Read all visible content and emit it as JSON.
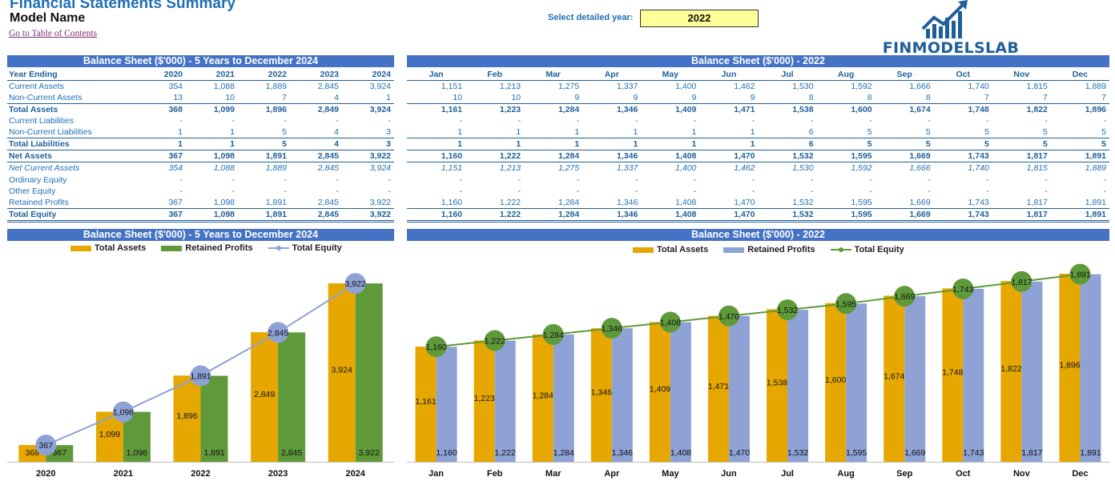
{
  "header": {
    "title": "Financial Statements Summary",
    "model_name": "Model Name",
    "toc_link": "Go to Table of Contents",
    "year_label": "Select detailed year:",
    "year_value": "2022",
    "logo_text": "FINMODELSLAB"
  },
  "colors": {
    "band": "#4472c4",
    "total_assets": "#e6a800",
    "retained_profits_annual": "#5f9a3a",
    "retained_profits_monthly": "#8ea2d6",
    "equity_line_annual": "#8ea2d6",
    "equity_line_monthly": "#5f9a3a",
    "text_blue": "#1f6fb5",
    "input_yellow": "#ffff99"
  },
  "annual_table": {
    "band_title": "Balance Sheet ($'000) - 5 Years to December 2024",
    "header_label": "Year Ending",
    "years": [
      "2020",
      "2021",
      "2022",
      "2023",
      "2024"
    ],
    "rows": [
      {
        "label": "Current Assets",
        "values": [
          "354",
          "1,088",
          "1,889",
          "2,845",
          "3,924"
        ],
        "style": "normal"
      },
      {
        "label": "Non-Current Assets",
        "values": [
          "13",
          "10",
          "7",
          "4",
          "1"
        ],
        "style": "normal"
      },
      {
        "label": "Total Assets",
        "values": [
          "368",
          "1,099",
          "1,896",
          "2,849",
          "3,924"
        ],
        "style": "total"
      },
      {
        "label": "Current Liabilities",
        "values": [
          "-",
          "-",
          "-",
          "-",
          "-"
        ],
        "style": "normal"
      },
      {
        "label": "Non-Current Liabilities",
        "values": [
          "1",
          "1",
          "5",
          "4",
          "3"
        ],
        "style": "normal"
      },
      {
        "label": "Total Liabilities",
        "values": [
          "1",
          "1",
          "5",
          "4",
          "3"
        ],
        "style": "total"
      },
      {
        "label": "Net Assets",
        "values": [
          "367",
          "1,098",
          "1,891",
          "2,845",
          "3,922"
        ],
        "style": "net"
      },
      {
        "label": "Net Current Assets",
        "values": [
          "354",
          "1,088",
          "1,889",
          "2,845",
          "3,924"
        ],
        "style": "italic"
      },
      {
        "label": "Ordinary Equity",
        "values": [
          "-",
          "-",
          "-",
          "-",
          "-"
        ],
        "style": "normal"
      },
      {
        "label": "Other Equity",
        "values": [
          "-",
          "-",
          "-",
          "-",
          "-"
        ],
        "style": "normal"
      },
      {
        "label": "Retained Profits",
        "values": [
          "367",
          "1,098",
          "1,891",
          "2,845",
          "3,922"
        ],
        "style": "normal"
      },
      {
        "label": "Total Equity",
        "values": [
          "367",
          "1,098",
          "1,891",
          "2,845",
          "3,922"
        ],
        "style": "grand"
      }
    ]
  },
  "monthly_table": {
    "band_title": "Balance Sheet ($'000) - 2022",
    "months": [
      "Jan",
      "Feb",
      "Mar",
      "Apr",
      "May",
      "Jun",
      "Jul",
      "Aug",
      "Sep",
      "Oct",
      "Nov",
      "Dec"
    ],
    "rows": [
      {
        "values": [
          "1,151",
          "1,213",
          "1,275",
          "1,337",
          "1,400",
          "1,462",
          "1,530",
          "1,592",
          "1,666",
          "1,740",
          "1,815",
          "1,889"
        ],
        "style": "normal"
      },
      {
        "values": [
          "10",
          "10",
          "9",
          "9",
          "9",
          "9",
          "8",
          "8",
          "8",
          "7",
          "7",
          "7"
        ],
        "style": "normal"
      },
      {
        "values": [
          "1,161",
          "1,223",
          "1,284",
          "1,346",
          "1,409",
          "1,471",
          "1,538",
          "1,600",
          "1,674",
          "1,748",
          "1,822",
          "1,896"
        ],
        "style": "total"
      },
      {
        "values": [
          "-",
          "-",
          "-",
          "-",
          "-",
          "-",
          "-",
          "-",
          "-",
          "-",
          "-",
          "-"
        ],
        "style": "normal"
      },
      {
        "values": [
          "1",
          "1",
          "1",
          "1",
          "1",
          "1",
          "6",
          "5",
          "5",
          "5",
          "5",
          "5"
        ],
        "style": "normal"
      },
      {
        "values": [
          "1",
          "1",
          "1",
          "1",
          "1",
          "1",
          "6",
          "5",
          "5",
          "5",
          "5",
          "5"
        ],
        "style": "total"
      },
      {
        "values": [
          "1,160",
          "1,222",
          "1,284",
          "1,346",
          "1,408",
          "1,470",
          "1,532",
          "1,595",
          "1,669",
          "1,743",
          "1,817",
          "1,891"
        ],
        "style": "net"
      },
      {
        "values": [
          "1,151",
          "1,213",
          "1,275",
          "1,337",
          "1,400",
          "1,462",
          "1,530",
          "1,592",
          "1,666",
          "1,740",
          "1,815",
          "1,889"
        ],
        "style": "italic"
      },
      {
        "values": [
          "-",
          "-",
          "-",
          "-",
          "-",
          "-",
          "-",
          "-",
          "-",
          "-",
          "-",
          "-"
        ],
        "style": "normal"
      },
      {
        "values": [
          "-",
          "-",
          "-",
          "-",
          "-",
          "-",
          "-",
          "-",
          "-",
          "-",
          "-",
          "-"
        ],
        "style": "normal"
      },
      {
        "values": [
          "1,160",
          "1,222",
          "1,284",
          "1,346",
          "1,408",
          "1,470",
          "1,532",
          "1,595",
          "1,669",
          "1,743",
          "1,817",
          "1,891"
        ],
        "style": "normal"
      },
      {
        "values": [
          "1,160",
          "1,222",
          "1,284",
          "1,346",
          "1,408",
          "1,470",
          "1,532",
          "1,595",
          "1,669",
          "1,743",
          "1,817",
          "1,891"
        ],
        "style": "grand"
      }
    ]
  },
  "legend": {
    "total_assets": "Total Assets",
    "retained_profits": "Retained Profits",
    "total_equity": "Total Equity"
  },
  "chart_data": [
    {
      "type": "bar",
      "title": "Balance Sheet ($'000) - 5 Years to December 2024",
      "categories": [
        "2020",
        "2021",
        "2022",
        "2023",
        "2024"
      ],
      "series": [
        {
          "name": "Total Assets",
          "kind": "bar",
          "values": [
            368,
            1099,
            1896,
            2849,
            3924
          ]
        },
        {
          "name": "Retained Profits",
          "kind": "bar",
          "values": [
            367,
            1098,
            1891,
            2845,
            3922
          ]
        },
        {
          "name": "Total Equity",
          "kind": "line",
          "values": [
            367,
            1098,
            1891,
            2845,
            3922
          ]
        }
      ],
      "ylim": [
        0,
        3924
      ],
      "grid": false,
      "legend_position": "top"
    },
    {
      "type": "bar",
      "title": "Balance Sheet ($'000) - 2022",
      "categories": [
        "Jan",
        "Feb",
        "Mar",
        "Apr",
        "May",
        "Jun",
        "Jul",
        "Aug",
        "Sep",
        "Oct",
        "Nov",
        "Dec"
      ],
      "series": [
        {
          "name": "Total Assets",
          "kind": "bar",
          "values": [
            1161,
            1223,
            1284,
            1346,
            1409,
            1471,
            1538,
            1600,
            1674,
            1748,
            1822,
            1896
          ]
        },
        {
          "name": "Retained Profits",
          "kind": "bar",
          "values": [
            1160,
            1222,
            1284,
            1346,
            1408,
            1470,
            1532,
            1595,
            1669,
            1743,
            1817,
            1891
          ]
        },
        {
          "name": "Total Equity",
          "kind": "line",
          "values": [
            1160,
            1222,
            1284,
            1346,
            1408,
            1470,
            1532,
            1595,
            1669,
            1743,
            1817,
            1891
          ]
        }
      ],
      "ylim": [
        0,
        1896
      ],
      "grid": false,
      "legend_position": "top"
    }
  ]
}
